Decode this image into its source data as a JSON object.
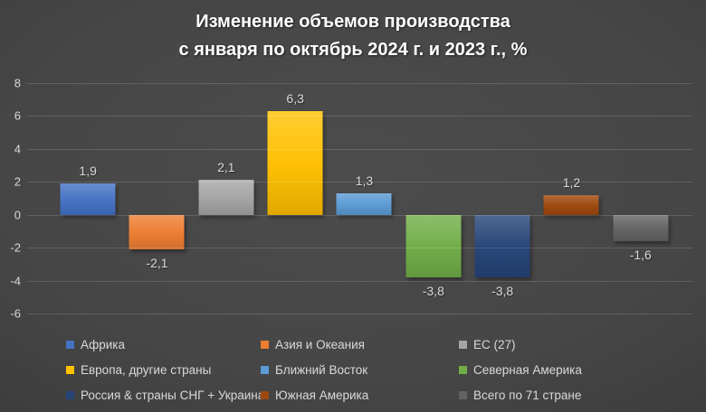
{
  "title": {
    "line1": "Изменение объемов производства",
    "line2": "с января по октябрь 2024 г. и 2023 г., %"
  },
  "colors": {
    "background_center": "#4c4c4c",
    "background_edge": "#282828",
    "gridline": "rgba(255,255,255,0.14)",
    "text": "#d9d9d9",
    "title_text": "#ffffff"
  },
  "chart_data": {
    "type": "bar",
    "title": "Изменение объемов производства с января по октябрь 2024 г. и 2023 г., %",
    "categories": [
      "Африка",
      "Азия и Океания",
      "ЕС (27)",
      "Европа, другие страны",
      "Ближний Восток",
      "Северная Америка",
      "Россия & страны СНГ + Украина",
      "Южная Америка",
      "Всего по 71 стране"
    ],
    "values": [
      1.9,
      -2.1,
      2.1,
      6.3,
      1.3,
      -3.8,
      -3.8,
      1.2,
      -1.6
    ],
    "value_labels": [
      "1,9",
      "-2,1",
      "2,1",
      "6,3",
      "1,3",
      "-3,8",
      "-3,8",
      "1,2",
      "-1,6"
    ],
    "colors": [
      "#4472C4",
      "#ED7D31",
      "#A5A5A5",
      "#FFC000",
      "#5B9BD5",
      "#70AD47",
      "#264478",
      "#9E480E",
      "#636363"
    ],
    "xlabel": "",
    "ylabel": "",
    "y_ticks": [
      8,
      6,
      4,
      2,
      0,
      -2,
      -4,
      -6
    ],
    "ylim": [
      -6,
      8
    ],
    "grid": true,
    "legend_position": "bottom",
    "legend_columns": 3
  }
}
